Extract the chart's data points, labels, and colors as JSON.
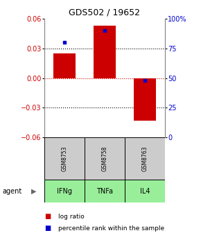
{
  "title": "GDS502 / 19652",
  "samples": [
    "GSM8753",
    "GSM8758",
    "GSM8763"
  ],
  "agents": [
    "IFNg",
    "TNFa",
    "IL4"
  ],
  "log_ratios": [
    0.025,
    0.053,
    -0.043
  ],
  "percentile_ranks": [
    80,
    90,
    48
  ],
  "ylim_left": [
    -0.06,
    0.06
  ],
  "ylim_right": [
    0,
    100
  ],
  "yticks_left": [
    -0.06,
    -0.03,
    0,
    0.03,
    0.06
  ],
  "yticks_right": [
    0,
    25,
    50,
    75,
    100
  ],
  "ytick_labels_right": [
    "0",
    "25",
    "50",
    "75",
    "100%"
  ],
  "bar_color": "#cc0000",
  "rank_color": "#0000cc",
  "zero_line_color": "#cc0000",
  "grid_color": "#000000",
  "sample_bg": "#cccccc",
  "agent_bg": "#99ee99",
  "bar_width": 0.55,
  "agent_label": "agent",
  "legend_log_ratio": "log ratio",
  "legend_percentile": "percentile rank within the sample",
  "title_fontsize": 9,
  "tick_fontsize": 7,
  "label_fontsize": 7,
  "sample_fontsize": 5.5,
  "agent_fontsize": 7,
  "legend_fontsize": 6.5
}
